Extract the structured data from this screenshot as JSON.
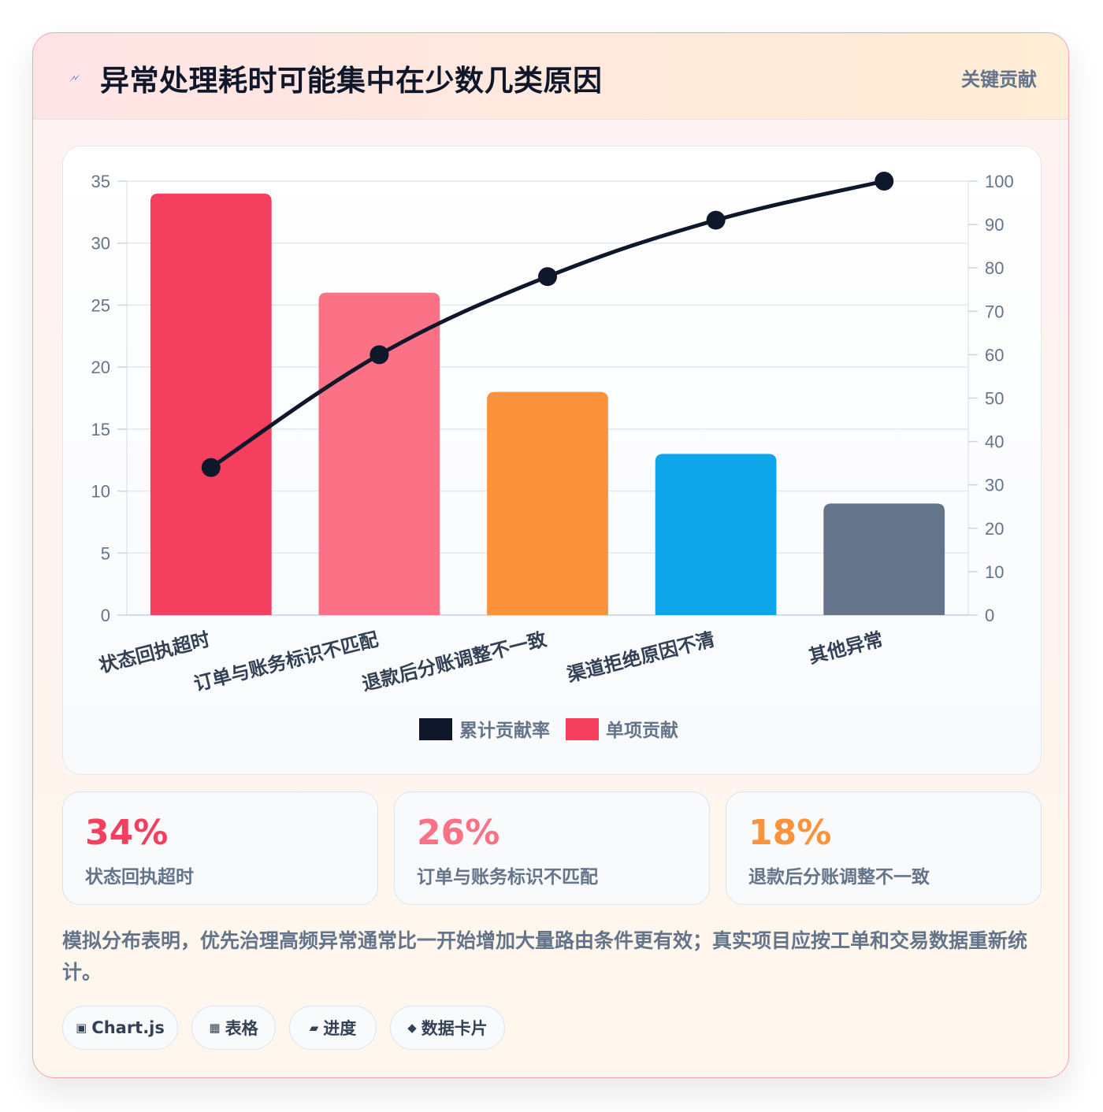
{
  "header": {
    "title": "异常处理耗时可能集中在少数几类原因",
    "tag": "关键贡献",
    "icon": "lightning-icon"
  },
  "chart_data": {
    "type": "bar",
    "categories": [
      "状态回执超时",
      "订单与账务标识不匹配",
      "退款后分账调整不一致",
      "渠道拒绝原因不清",
      "其他异常"
    ],
    "series": [
      {
        "name": "单项贡献",
        "type": "bar",
        "axis": "left",
        "values": [
          34,
          26,
          18,
          13,
          9
        ]
      },
      {
        "name": "累计贡献率",
        "type": "line",
        "axis": "right",
        "values": [
          34,
          60,
          78,
          91,
          100
        ]
      }
    ],
    "bar_colors": [
      "#f43f5e",
      "#fb7185",
      "#fb923c",
      "#0ea5e9",
      "#64748b"
    ],
    "line_color": "#0f172a",
    "ylim": [
      0,
      35
    ],
    "yticks": [
      0,
      5,
      10,
      15,
      20,
      25,
      30,
      35
    ],
    "y2lim": [
      0,
      100
    ],
    "y2ticks": [
      0,
      10,
      20,
      30,
      40,
      50,
      60,
      70,
      80,
      90,
      100
    ],
    "grid": true,
    "legend": {
      "position": "bottom",
      "items": [
        "累计贡献率",
        "单项贡献"
      ]
    }
  },
  "stats": [
    {
      "value": "34%",
      "label": "状态回执超时",
      "color": "#f43f5e"
    },
    {
      "value": "26%",
      "label": "订单与账务标识不匹配",
      "color": "#fb7185"
    },
    {
      "value": "18%",
      "label": "退款后分账调整不一致",
      "color": "#fb923c"
    }
  ],
  "note": "模拟分布表明，优先治理高频异常通常比一开始增加大量路由条件更有效；真实项目应按工单和交易数据重新统计。",
  "chips": [
    {
      "icon": "▣",
      "label": "Chart.js"
    },
    {
      "icon": "▦",
      "label": "表格"
    },
    {
      "icon": "▰",
      "label": "进度"
    },
    {
      "icon": "◆",
      "label": "数据卡片"
    }
  ]
}
